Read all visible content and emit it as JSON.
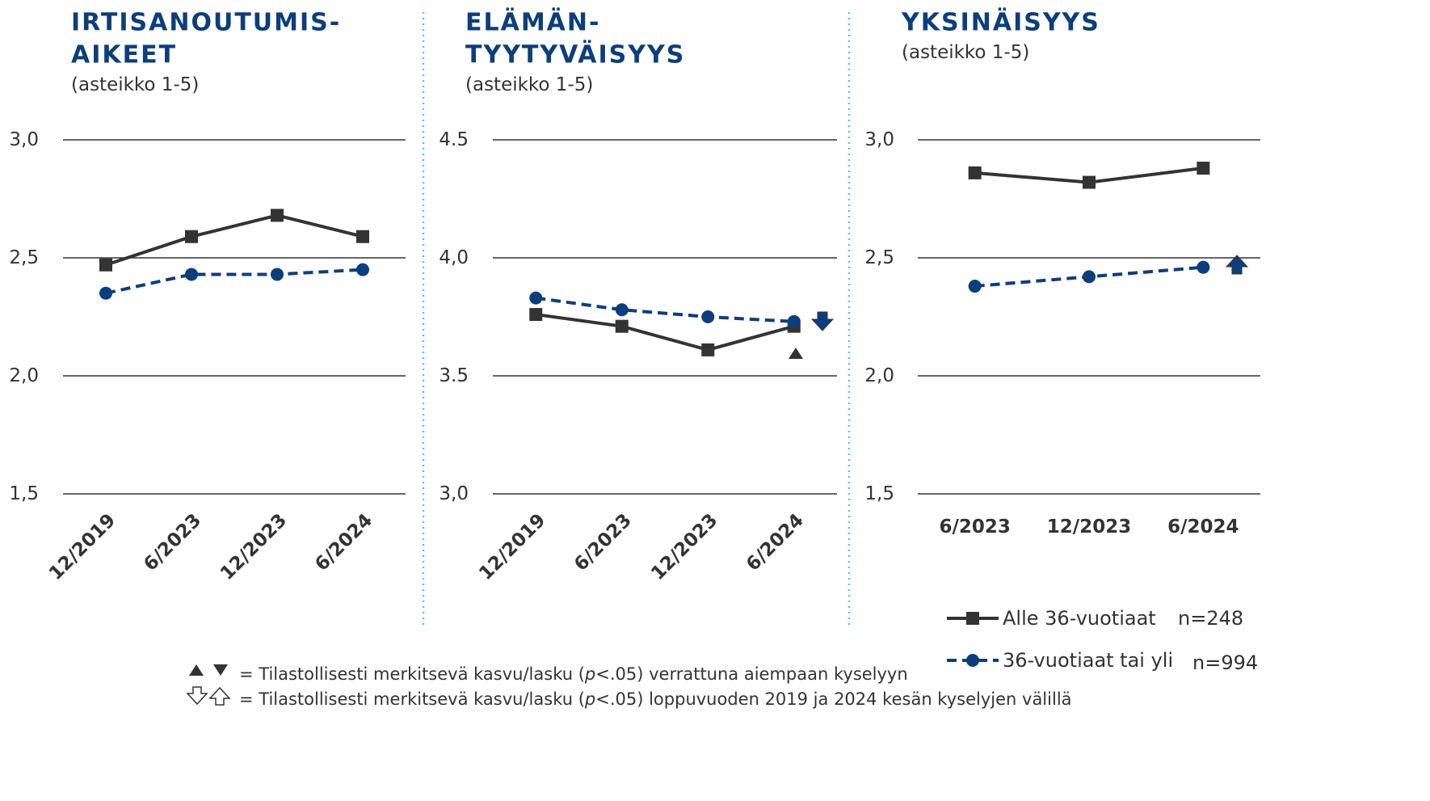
{
  "chart_data": [
    {
      "type": "line",
      "title_lines": [
        "IRTISANOUTUMIS-",
        "AIKEET"
      ],
      "subtitle": "(asteikko 1-5)",
      "categories": [
        "12/2019",
        "6/2023",
        "12/2023",
        "6/2024"
      ],
      "rotate_labels": true,
      "series": [
        {
          "name": "Alle 36-vuotiaat",
          "color": "#333333",
          "marker": "square",
          "dashed": false,
          "values": [
            2.47,
            2.59,
            2.68,
            2.59
          ]
        },
        {
          "name": "36-vuotiaat tai yli",
          "color": "#0d3e7c",
          "marker": "circle",
          "dashed": true,
          "values": [
            2.35,
            2.43,
            2.43,
            2.45
          ]
        }
      ],
      "ylim": [
        1.5,
        3.0
      ],
      "yticks": [
        {
          "value": 1.5,
          "label": "1,5"
        },
        {
          "value": 2.0,
          "label": "2,0"
        },
        {
          "value": 2.5,
          "label": "2,5"
        },
        {
          "value": 3.0,
          "label": "3,0"
        }
      ],
      "grid": true
    },
    {
      "type": "line",
      "title_lines": [
        "ELÄMÄN-",
        "TYYTYVÄISYYS"
      ],
      "subtitle": "(asteikko 1-5)",
      "categories": [
        "12/2019",
        "6/2023",
        "12/2023",
        "6/2024"
      ],
      "rotate_labels": true,
      "series": [
        {
          "name": "Alle 36-vuotiaat",
          "color": "#333333",
          "marker": "square",
          "dashed": false,
          "values": [
            3.76,
            3.71,
            3.61,
            3.71
          ]
        },
        {
          "name": "36-vuotiaat tai yli",
          "color": "#0d3e7c",
          "marker": "circle",
          "dashed": true,
          "values": [
            3.83,
            3.78,
            3.75,
            3.73
          ]
        }
      ],
      "ylim": [
        3.0,
        4.5
      ],
      "yticks": [
        {
          "value": 3.0,
          "label": "3,0"
        },
        3.5,
        {
          "value": 4.0,
          "label": "4,0"
        },
        4.5
      ],
      "grid": true
    },
    {
      "type": "line",
      "title_lines": [
        "YKSINÄISYYS"
      ],
      "subtitle": "(asteikko 1-5)",
      "categories": [
        "6/2023",
        "12/2023",
        "6/2024"
      ],
      "rotate_labels": false,
      "series": [
        {
          "name": "Alle 36-vuotiaat",
          "color": "#333333",
          "marker": "square",
          "dashed": false,
          "values": [
            2.86,
            2.82,
            2.88
          ]
        },
        {
          "name": "36-vuotiaat tai yli",
          "color": "#0d3e7c",
          "marker": "circle",
          "dashed": true,
          "values": [
            2.38,
            2.42,
            2.46
          ]
        }
      ],
      "ylim": [
        1.5,
        3.0
      ],
      "yticks": [
        {
          "value": 1.5,
          "label": "1,5"
        },
        {
          "value": 2.0,
          "label": "2,0"
        },
        {
          "value": 2.5,
          "label": "2,5"
        },
        {
          "value": 3.0,
          "label": "3,0"
        }
      ],
      "grid": true
    }
  ],
  "legend_counts": [
    "n=248",
    "n=994"
  ],
  "notes": [
    {
      "prefix": "= Tilastollisesti merkitsevä kasvu/lasku (",
      "italic": "p",
      "suffix": "<.05) verrattuna aiempaan kyselyyn"
    },
    {
      "prefix": "= Tilastollisesti merkitsevä kasvu/lasku (",
      "italic": "p",
      "suffix": "<.05) loppuvuoden 2019 ja 2024 kesän kyselyjen välillä"
    }
  ]
}
